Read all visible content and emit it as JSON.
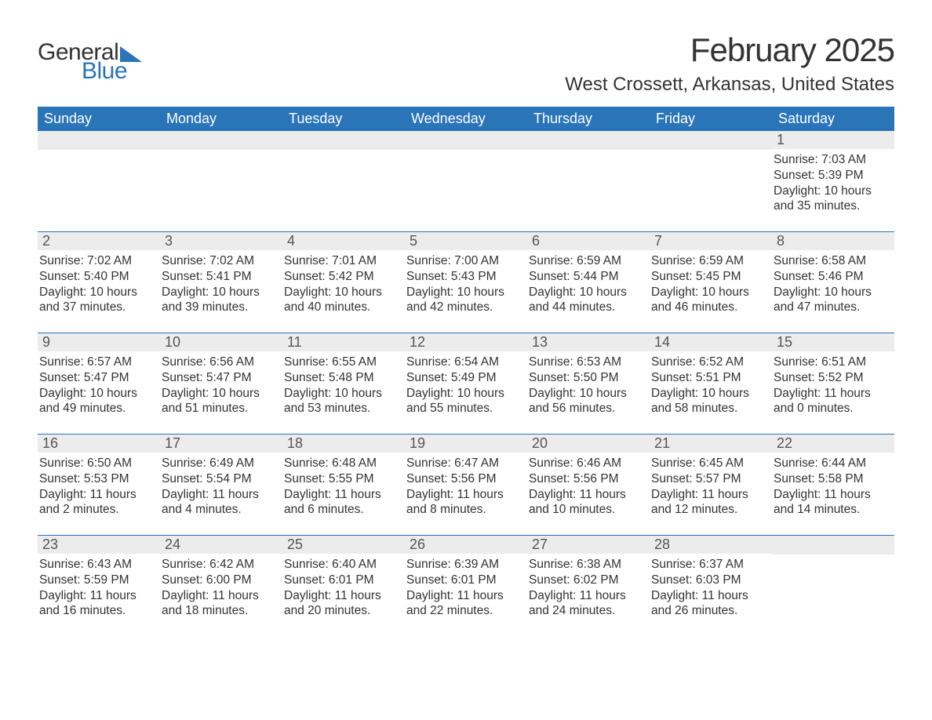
{
  "logo": {
    "word1": "General",
    "word2": "Blue"
  },
  "title": "February 2025",
  "location": "West Crossett, Arkansas, United States",
  "colors": {
    "accent": "#2a74b8",
    "header_bg": "#2a74b8",
    "daynum_bg": "#ececec",
    "text": "#333333",
    "background": "#ffffff"
  },
  "weekdays": [
    "Sunday",
    "Monday",
    "Tuesday",
    "Wednesday",
    "Thursday",
    "Friday",
    "Saturday"
  ],
  "first_day_index": 6,
  "days": [
    {
      "n": 1,
      "sunrise": "7:03 AM",
      "sunset": "5:39 PM",
      "daylight": "10 hours and 35 minutes."
    },
    {
      "n": 2,
      "sunrise": "7:02 AM",
      "sunset": "5:40 PM",
      "daylight": "10 hours and 37 minutes."
    },
    {
      "n": 3,
      "sunrise": "7:02 AM",
      "sunset": "5:41 PM",
      "daylight": "10 hours and 39 minutes."
    },
    {
      "n": 4,
      "sunrise": "7:01 AM",
      "sunset": "5:42 PM",
      "daylight": "10 hours and 40 minutes."
    },
    {
      "n": 5,
      "sunrise": "7:00 AM",
      "sunset": "5:43 PM",
      "daylight": "10 hours and 42 minutes."
    },
    {
      "n": 6,
      "sunrise": "6:59 AM",
      "sunset": "5:44 PM",
      "daylight": "10 hours and 44 minutes."
    },
    {
      "n": 7,
      "sunrise": "6:59 AM",
      "sunset": "5:45 PM",
      "daylight": "10 hours and 46 minutes."
    },
    {
      "n": 8,
      "sunrise": "6:58 AM",
      "sunset": "5:46 PM",
      "daylight": "10 hours and 47 minutes."
    },
    {
      "n": 9,
      "sunrise": "6:57 AM",
      "sunset": "5:47 PM",
      "daylight": "10 hours and 49 minutes."
    },
    {
      "n": 10,
      "sunrise": "6:56 AM",
      "sunset": "5:47 PM",
      "daylight": "10 hours and 51 minutes."
    },
    {
      "n": 11,
      "sunrise": "6:55 AM",
      "sunset": "5:48 PM",
      "daylight": "10 hours and 53 minutes."
    },
    {
      "n": 12,
      "sunrise": "6:54 AM",
      "sunset": "5:49 PM",
      "daylight": "10 hours and 55 minutes."
    },
    {
      "n": 13,
      "sunrise": "6:53 AM",
      "sunset": "5:50 PM",
      "daylight": "10 hours and 56 minutes."
    },
    {
      "n": 14,
      "sunrise": "6:52 AM",
      "sunset": "5:51 PM",
      "daylight": "10 hours and 58 minutes."
    },
    {
      "n": 15,
      "sunrise": "6:51 AM",
      "sunset": "5:52 PM",
      "daylight": "11 hours and 0 minutes."
    },
    {
      "n": 16,
      "sunrise": "6:50 AM",
      "sunset": "5:53 PM",
      "daylight": "11 hours and 2 minutes."
    },
    {
      "n": 17,
      "sunrise": "6:49 AM",
      "sunset": "5:54 PM",
      "daylight": "11 hours and 4 minutes."
    },
    {
      "n": 18,
      "sunrise": "6:48 AM",
      "sunset": "5:55 PM",
      "daylight": "11 hours and 6 minutes."
    },
    {
      "n": 19,
      "sunrise": "6:47 AM",
      "sunset": "5:56 PM",
      "daylight": "11 hours and 8 minutes."
    },
    {
      "n": 20,
      "sunrise": "6:46 AM",
      "sunset": "5:56 PM",
      "daylight": "11 hours and 10 minutes."
    },
    {
      "n": 21,
      "sunrise": "6:45 AM",
      "sunset": "5:57 PM",
      "daylight": "11 hours and 12 minutes."
    },
    {
      "n": 22,
      "sunrise": "6:44 AM",
      "sunset": "5:58 PM",
      "daylight": "11 hours and 14 minutes."
    },
    {
      "n": 23,
      "sunrise": "6:43 AM",
      "sunset": "5:59 PM",
      "daylight": "11 hours and 16 minutes."
    },
    {
      "n": 24,
      "sunrise": "6:42 AM",
      "sunset": "6:00 PM",
      "daylight": "11 hours and 18 minutes."
    },
    {
      "n": 25,
      "sunrise": "6:40 AM",
      "sunset": "6:01 PM",
      "daylight": "11 hours and 20 minutes."
    },
    {
      "n": 26,
      "sunrise": "6:39 AM",
      "sunset": "6:01 PM",
      "daylight": "11 hours and 22 minutes."
    },
    {
      "n": 27,
      "sunrise": "6:38 AM",
      "sunset": "6:02 PM",
      "daylight": "11 hours and 24 minutes."
    },
    {
      "n": 28,
      "sunrise": "6:37 AM",
      "sunset": "6:03 PM",
      "daylight": "11 hours and 26 minutes."
    }
  ],
  "labels": {
    "sunrise": "Sunrise:",
    "sunset": "Sunset:",
    "daylight": "Daylight:"
  }
}
